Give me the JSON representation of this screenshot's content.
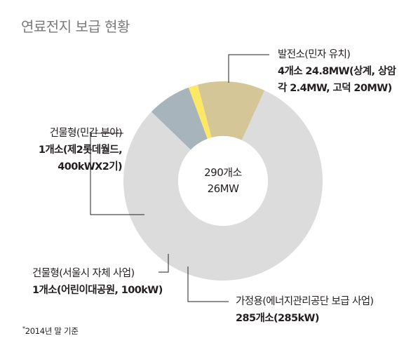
{
  "title": "연료전지 보급 현황",
  "center": {
    "count": "290개소",
    "capacity": "26MW"
  },
  "colors": {
    "power": "#dcdcdc",
    "bldg_private": "#d5c697",
    "bldg_seoul": "#fde865",
    "home": "#a8b4bb",
    "leader": "#231f20"
  },
  "labels": {
    "power": {
      "name": "발전소(민자 유치)",
      "detail1": "4개소 24.8MW(상계, 상암",
      "detail2": "각 2.4MW, 고덕 20MW)"
    },
    "bldg_private": {
      "name": "건물형(민간 분야)",
      "detail1": "1개소(제2롯데월드,",
      "detail2": "400kWX2기)"
    },
    "bldg_seoul": {
      "name": "건물형(서울시 자체 사업)",
      "detail1": "1개소(어린이대공원, 100kW)"
    },
    "home": {
      "name": "가정용(에너지관리공단 보급 사업)",
      "detail1": "285개소(285kW)"
    }
  },
  "footnote": {
    "mark": "*",
    "text": "2014년 말 기준"
  },
  "chart_data": {
    "type": "pie",
    "donut": true,
    "title": "연료전지 보급 현황",
    "center_text": [
      "290개소",
      "26MW"
    ],
    "unit": "MW",
    "series": [
      {
        "name": "발전소(민자 유치)",
        "value": 24.8,
        "color": "#dcdcdc"
      },
      {
        "name": "가정용(에너지관리공단 보급 사업)",
        "value": 0.285,
        "color": "#a8b4bb"
      },
      {
        "name": "건물형(서울시 자체 사업)",
        "value": 0.1,
        "color": "#fde865"
      },
      {
        "name": "건물형(민간 분야)",
        "value": 0.8,
        "color": "#d5c697"
      }
    ]
  }
}
